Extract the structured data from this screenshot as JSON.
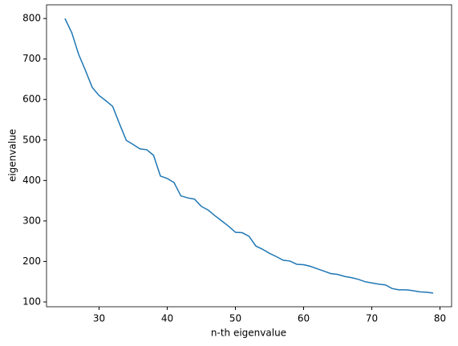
{
  "chart_data": {
    "type": "line",
    "xlabel": "n-th eigenvalue",
    "ylabel": "eigenvalue",
    "x": [
      25,
      26,
      27,
      28,
      29,
      30,
      31,
      32,
      33,
      34,
      35,
      36,
      37,
      38,
      39,
      40,
      41,
      42,
      43,
      44,
      45,
      46,
      47,
      48,
      49,
      50,
      51,
      52,
      53,
      54,
      55,
      56,
      57,
      58,
      59,
      60,
      61,
      62,
      63,
      64,
      65,
      66,
      67,
      68,
      69,
      70,
      71,
      72,
      73,
      74,
      75,
      76,
      77,
      78,
      79
    ],
    "series": [
      {
        "color": "#1f77b4",
        "values": [
          800,
          765,
          712,
          672,
          630,
          610,
          597,
          583,
          540,
          499,
          489,
          478,
          476,
          462,
          411,
          405,
          395,
          362,
          357,
          354,
          336,
          327,
          313,
          300,
          287,
          272,
          271,
          262,
          238,
          230,
          220,
          212,
          203,
          201,
          193,
          192,
          188,
          182,
          176,
          170,
          168,
          163,
          160,
          156,
          150,
          147,
          144,
          142,
          133,
          130,
          130,
          128,
          125,
          124,
          122
        ]
      }
    ],
    "xlim": [
      22.3,
      81.7
    ],
    "ylim": [
      88.1,
      833.9
    ],
    "xticks": [
      30,
      40,
      50,
      60,
      70,
      80
    ],
    "yticks": [
      100,
      200,
      300,
      400,
      500,
      600,
      700,
      800
    ]
  }
}
